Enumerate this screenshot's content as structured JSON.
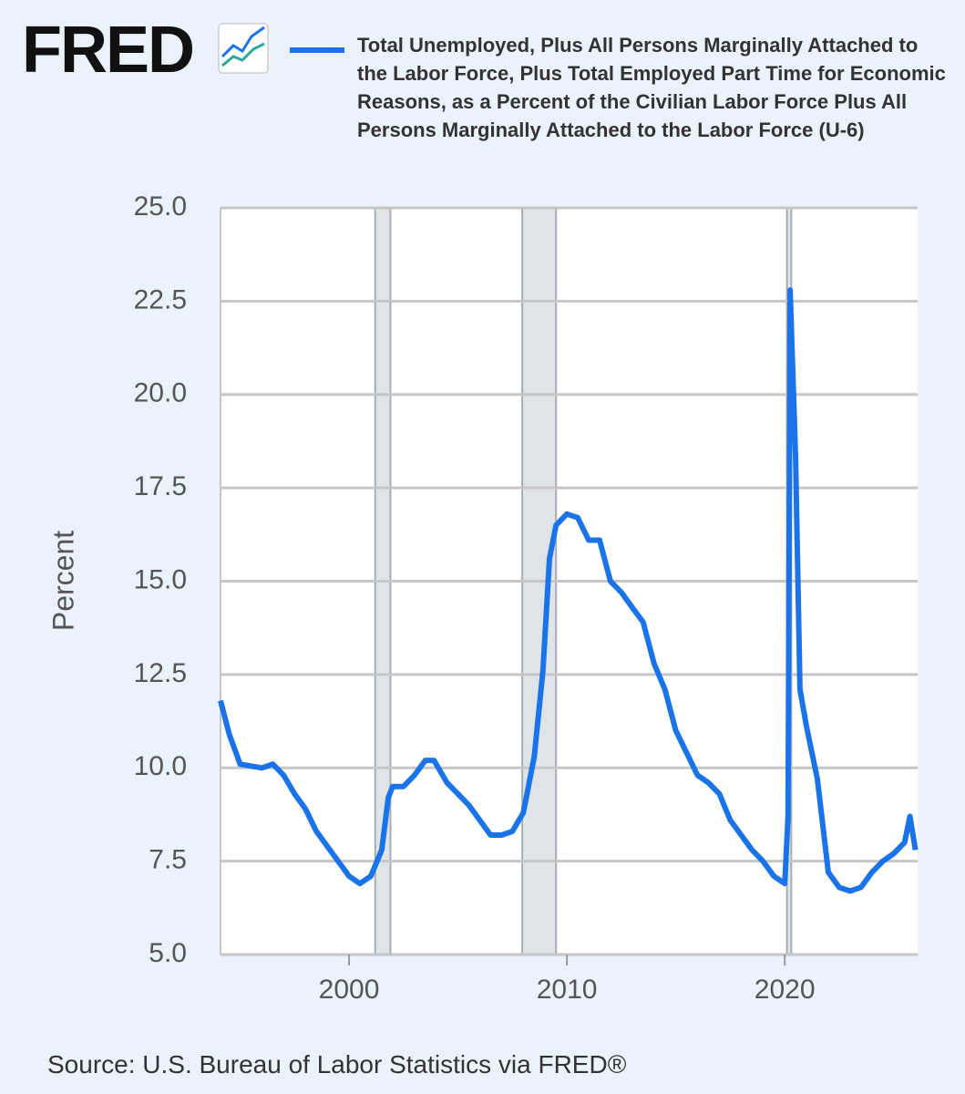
{
  "logo": "FRED",
  "source": "Source: U.S. Bureau of Labor Statistics via FRED®",
  "chart_data": {
    "type": "line",
    "ylabel": "Percent",
    "x": [
      1994.1,
      1994.5,
      1995.0,
      1996.0,
      1996.5,
      1997.0,
      1997.5,
      1998.0,
      1998.5,
      1999.0,
      1999.5,
      2000.0,
      2000.5,
      2001.0,
      2001.5,
      2001.8,
      2002.0,
      2002.5,
      2003.0,
      2003.5,
      2003.9,
      2004.5,
      2005.0,
      2005.5,
      2006.0,
      2006.5,
      2007.0,
      2007.5,
      2008.0,
      2008.5,
      2008.9,
      2009.2,
      2009.5,
      2010.0,
      2010.5,
      2011.0,
      2011.5,
      2012.0,
      2012.5,
      2013.0,
      2013.5,
      2014.0,
      2014.5,
      2015.0,
      2015.5,
      2016.0,
      2016.5,
      2017.0,
      2017.5,
      2018.0,
      2018.5,
      2019.0,
      2019.5,
      2020.0,
      2020.15,
      2020.25,
      2020.5,
      2020.7,
      2021.0,
      2021.5,
      2022.0,
      2022.5,
      2023.0,
      2023.5,
      2024.0,
      2024.5,
      2025.0,
      2025.5,
      2025.75,
      2026.0
    ],
    "series": [
      {
        "name": "Total Unemployed, Plus All Persons Marginally Attached to the Labor Force, Plus Total Employed Part Time for Economic Reasons, as a Percent of the Civilian Labor Force Plus All Persons Marginally Attached to the Labor Force (U-6)",
        "color": "#1a73e8",
        "values": [
          11.8,
          10.9,
          10.1,
          10.0,
          10.1,
          9.8,
          9.3,
          8.9,
          8.3,
          7.9,
          7.5,
          7.1,
          6.9,
          7.1,
          7.8,
          9.2,
          9.5,
          9.5,
          9.8,
          10.2,
          10.2,
          9.6,
          9.3,
          9.0,
          8.6,
          8.2,
          8.2,
          8.3,
          8.8,
          10.3,
          12.6,
          15.6,
          16.5,
          16.8,
          16.7,
          16.1,
          16.1,
          15.0,
          14.7,
          14.3,
          13.9,
          12.8,
          12.1,
          11.0,
          10.4,
          9.8,
          9.6,
          9.3,
          8.6,
          8.2,
          7.8,
          7.5,
          7.1,
          6.9,
          8.7,
          22.8,
          18.3,
          12.1,
          11.1,
          9.7,
          7.2,
          6.8,
          6.7,
          6.8,
          7.2,
          7.5,
          7.7,
          8.0,
          8.7,
          7.8
        ]
      }
    ],
    "shaded_periods": [
      [
        2001.2,
        2001.9
      ],
      [
        2007.95,
        2009.5
      ],
      [
        2020.1,
        2020.3
      ]
    ],
    "xlim": [
      1994.1,
      2026.1
    ],
    "xticks": [
      2000,
      2010,
      2020
    ],
    "ylim": [
      5,
      25
    ],
    "yticks": [
      {
        "value": 5,
        "label": "5.0"
      },
      7.5,
      {
        "value": 10,
        "label": "10.0"
      },
      12.5,
      {
        "value": 15,
        "label": "15.0"
      },
      17.5,
      {
        "value": 20,
        "label": "20.0"
      },
      22.5,
      {
        "value": 25,
        "label": "25.0"
      }
    ],
    "grid": true
  }
}
